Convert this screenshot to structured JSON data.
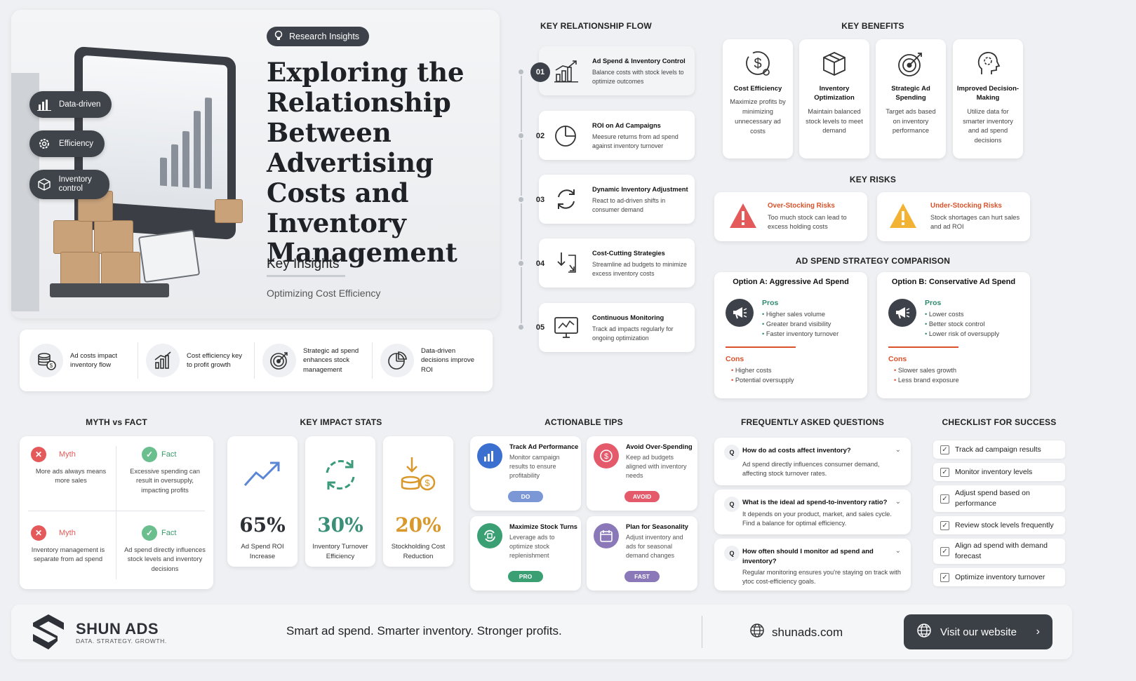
{
  "hero": {
    "tag": "Research Insights",
    "title": "Exploring the Relationship Between Advertising Costs and Inventory Management",
    "key_insights": "Key Insights",
    "subtitle": "Optimizing Cost Efficiency",
    "pills": [
      "Data-driven",
      "Efficiency",
      "Inventory control"
    ]
  },
  "strip": [
    {
      "text": "Ad costs impact inventory flow",
      "icon": "coins-icon"
    },
    {
      "text": "Cost efficiency key to profit growth",
      "icon": "bar-chart-icon"
    },
    {
      "text": "Strategic ad spend enhances stock management",
      "icon": "target-icon"
    },
    {
      "text": "Data-driven decisions improve ROI",
      "icon": "pie-chart-icon"
    }
  ],
  "flow": {
    "title": "KEY RELATIONSHIP FLOW",
    "steps": [
      {
        "num": "01",
        "title": "Ad Spend & Inventory Control",
        "desc": "Balance costs with stock levels to optimize outcomes"
      },
      {
        "num": "02",
        "title": "ROI on Ad Campaigns",
        "desc": "Meesure returns from ad spend against inventory turnover"
      },
      {
        "num": "03",
        "title": "Dynamic Inventory Adjustment",
        "desc": "React to ad-driven shifts in consumer demand"
      },
      {
        "num": "04",
        "title": "Cost-Cutting Strategies",
        "desc": "Streamline ad budgets to minimize excess inventory costs"
      },
      {
        "num": "05",
        "title": "Continuous Monitoring",
        "desc": "Track ad impacts regularly for ongoing optimization"
      }
    ]
  },
  "benefits": {
    "title": "KEY BENEFITS",
    "items": [
      {
        "title": "Cost Efficiency",
        "desc": "Maximize profits by minimizing unnecessary ad costs"
      },
      {
        "title": "Inventory Optimization",
        "desc": "Maintain balanced stock levels to meet demand"
      },
      {
        "title": "Strategic Ad Spending",
        "desc": "Target ads based on inventory performance"
      },
      {
        "title": "Improved Decision-Making",
        "desc": "Utilize data for smarter inventory and ad spend decisions"
      }
    ]
  },
  "risks": {
    "title": "KEY RISKS",
    "items": [
      {
        "title": "Over-Stocking Risks",
        "desc": "Too much stock can lead to excess holding costs",
        "color": "#e45a5a"
      },
      {
        "title": "Under-Stocking Risks",
        "desc": "Stock shortages can hurt sales and ad ROI",
        "color": "#f2b233"
      }
    ]
  },
  "strategy": {
    "title": "AD SPEND STRATEGY COMPARISON",
    "options": [
      {
        "heading": "Option A: Aggressive Ad Spend",
        "pros_label": "Pros",
        "pros": [
          "Higher sales volume",
          "Greater brand visibility",
          "Faster inventory turnover"
        ],
        "cons_label": "Cons",
        "cons": [
          "Higher costs",
          "Potential oversupply"
        ]
      },
      {
        "heading": "Option B: Conservative Ad Spend",
        "pros_label": "Pros",
        "pros": [
          "Lower costs",
          "Better stock control",
          "Lower risk of oversupply"
        ],
        "cons_label": "Cons",
        "cons": [
          "Slower sales growth",
          "Less brand exposure"
        ]
      }
    ]
  },
  "myth": {
    "title": "MYTH vs FACT",
    "myth_label": "Myth",
    "fact_label": "Fact",
    "rows": [
      {
        "myth": "More ads always means more sales",
        "fact": "Excessive spending can result in oversupply, impacting profits"
      },
      {
        "myth": "Inventory management is separate from ad spend",
        "fact": "Ad spend directly influences stock levels and inventory decisions"
      }
    ]
  },
  "stats": {
    "title": "KEY IMPACT STATS",
    "items": [
      {
        "value": "65%",
        "label": "Ad Spend ROI Increase",
        "color": "#2c3036"
      },
      {
        "value": "30%",
        "label": "Inventory Turnover Efficiency",
        "color": "#3a8f78"
      },
      {
        "value": "20%",
        "label": "Stockholding Cost Reduction",
        "color": "#d9982b"
      }
    ]
  },
  "tips": {
    "title": "ACTIONABLE TIPS",
    "items": [
      {
        "title": "Track Ad Performance",
        "desc": "Monitor campaign results to ensure profitability",
        "badge": "DO",
        "color": "#3b6fd0",
        "badge_color": "#7c97d6"
      },
      {
        "title": "Avoid Over-Spending",
        "desc": "Keep ad budgets aligned with inventory needs",
        "badge": "AVOID",
        "color": "#e45a6a",
        "badge_color": "#e45a6a"
      },
      {
        "title": "Maximize Stock Turns",
        "desc": "Leverage ads to optimize stock replenishment",
        "badge": "PRO",
        "color": "#3aa073",
        "badge_color": "#3aa073"
      },
      {
        "title": "Plan for Seasonality",
        "desc": "Adjust inventory and ads for seasonal demand changes",
        "badge": "FAST",
        "color": "#8a78b8",
        "badge_color": "#8a78b8"
      }
    ]
  },
  "faq": {
    "title": "FREQUENTLY ASKED QUESTIONS",
    "q_label": "Q",
    "items": [
      {
        "q": "How do ad costs affect inventory?",
        "a": "Ad spend directly influences consumer demand, affecting stock turnover rates."
      },
      {
        "q": "What is the ideal ad spend-to-inventory ratio?",
        "a": "It depends on your product, market, and sales cycle. Find a balance for optimal efficiency."
      },
      {
        "q": "How often should I monitor ad spend and inventory?",
        "a": "Regular monitoring ensures you're staying on track with ytoc cost-efficiency goals."
      }
    ]
  },
  "checklist": {
    "title": "CHECKLIST FOR SUCCESS",
    "items": [
      "Track ad campaign results",
      "Monitor inventory levels",
      "Adjust spend based on performance",
      "Review stock levels frequently",
      "Align ad spend with demand forecast",
      "Optimize inventory turnover"
    ]
  },
  "footer": {
    "brand": "SHUN ADS",
    "brand_tag": "DATA. STRATEGY. GROWTH.",
    "tagline": "Smart ad spend. Smarter inventory. Stronger profits.",
    "website": "shunads.com",
    "cta": "Visit our website"
  }
}
